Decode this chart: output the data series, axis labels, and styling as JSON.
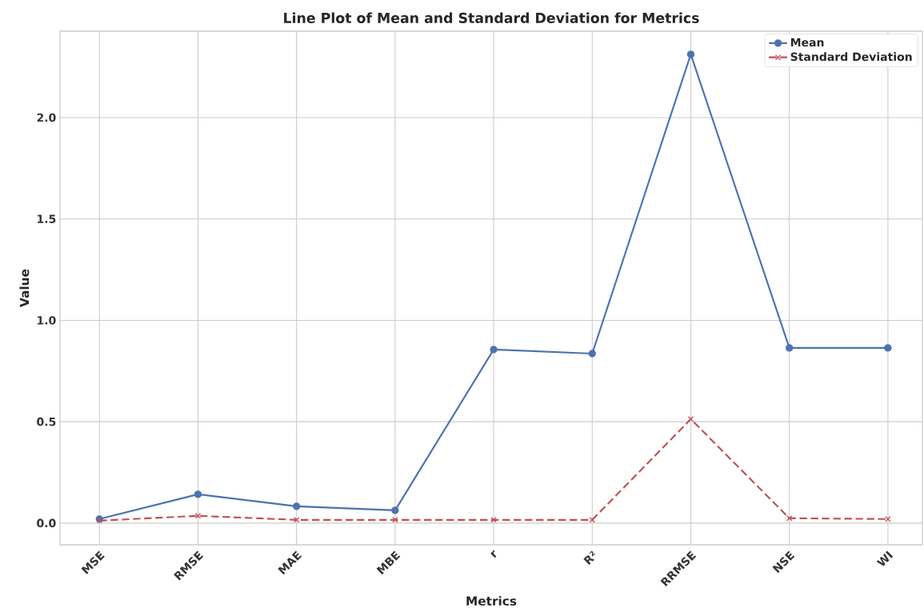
{
  "chart_data": {
    "type": "line",
    "title": "Line Plot of Mean and Standard Deviation for Metrics",
    "xlabel": "Metrics",
    "ylabel": "Value",
    "categories": [
      "MSE",
      "RMSE",
      "MAE",
      "MBE",
      "r",
      "R²",
      "RRMSE",
      "NSE",
      "WI"
    ],
    "series": [
      {
        "name": "Mean",
        "color": "#4c72b0",
        "marker": "circle",
        "line_style": "solid",
        "values": [
          0.02,
          0.142,
          0.083,
          0.063,
          0.856,
          0.836,
          2.312,
          0.864,
          0.864
        ]
      },
      {
        "name": "Standard Deviation",
        "color": "#c44e52",
        "marker": "cross",
        "line_style": "dashed",
        "values": [
          0.012,
          0.036,
          0.016,
          0.016,
          0.016,
          0.016,
          0.513,
          0.024,
          0.02
        ]
      }
    ],
    "ylim": [
      -0.107,
      2.426
    ],
    "yticks": [
      {
        "value": 0,
        "label": "0.0"
      },
      0.5,
      {
        "value": 1,
        "label": "1.0"
      },
      1.5,
      {
        "value": 2,
        "label": "2.0"
      }
    ],
    "grid": true,
    "legend": "top right"
  }
}
